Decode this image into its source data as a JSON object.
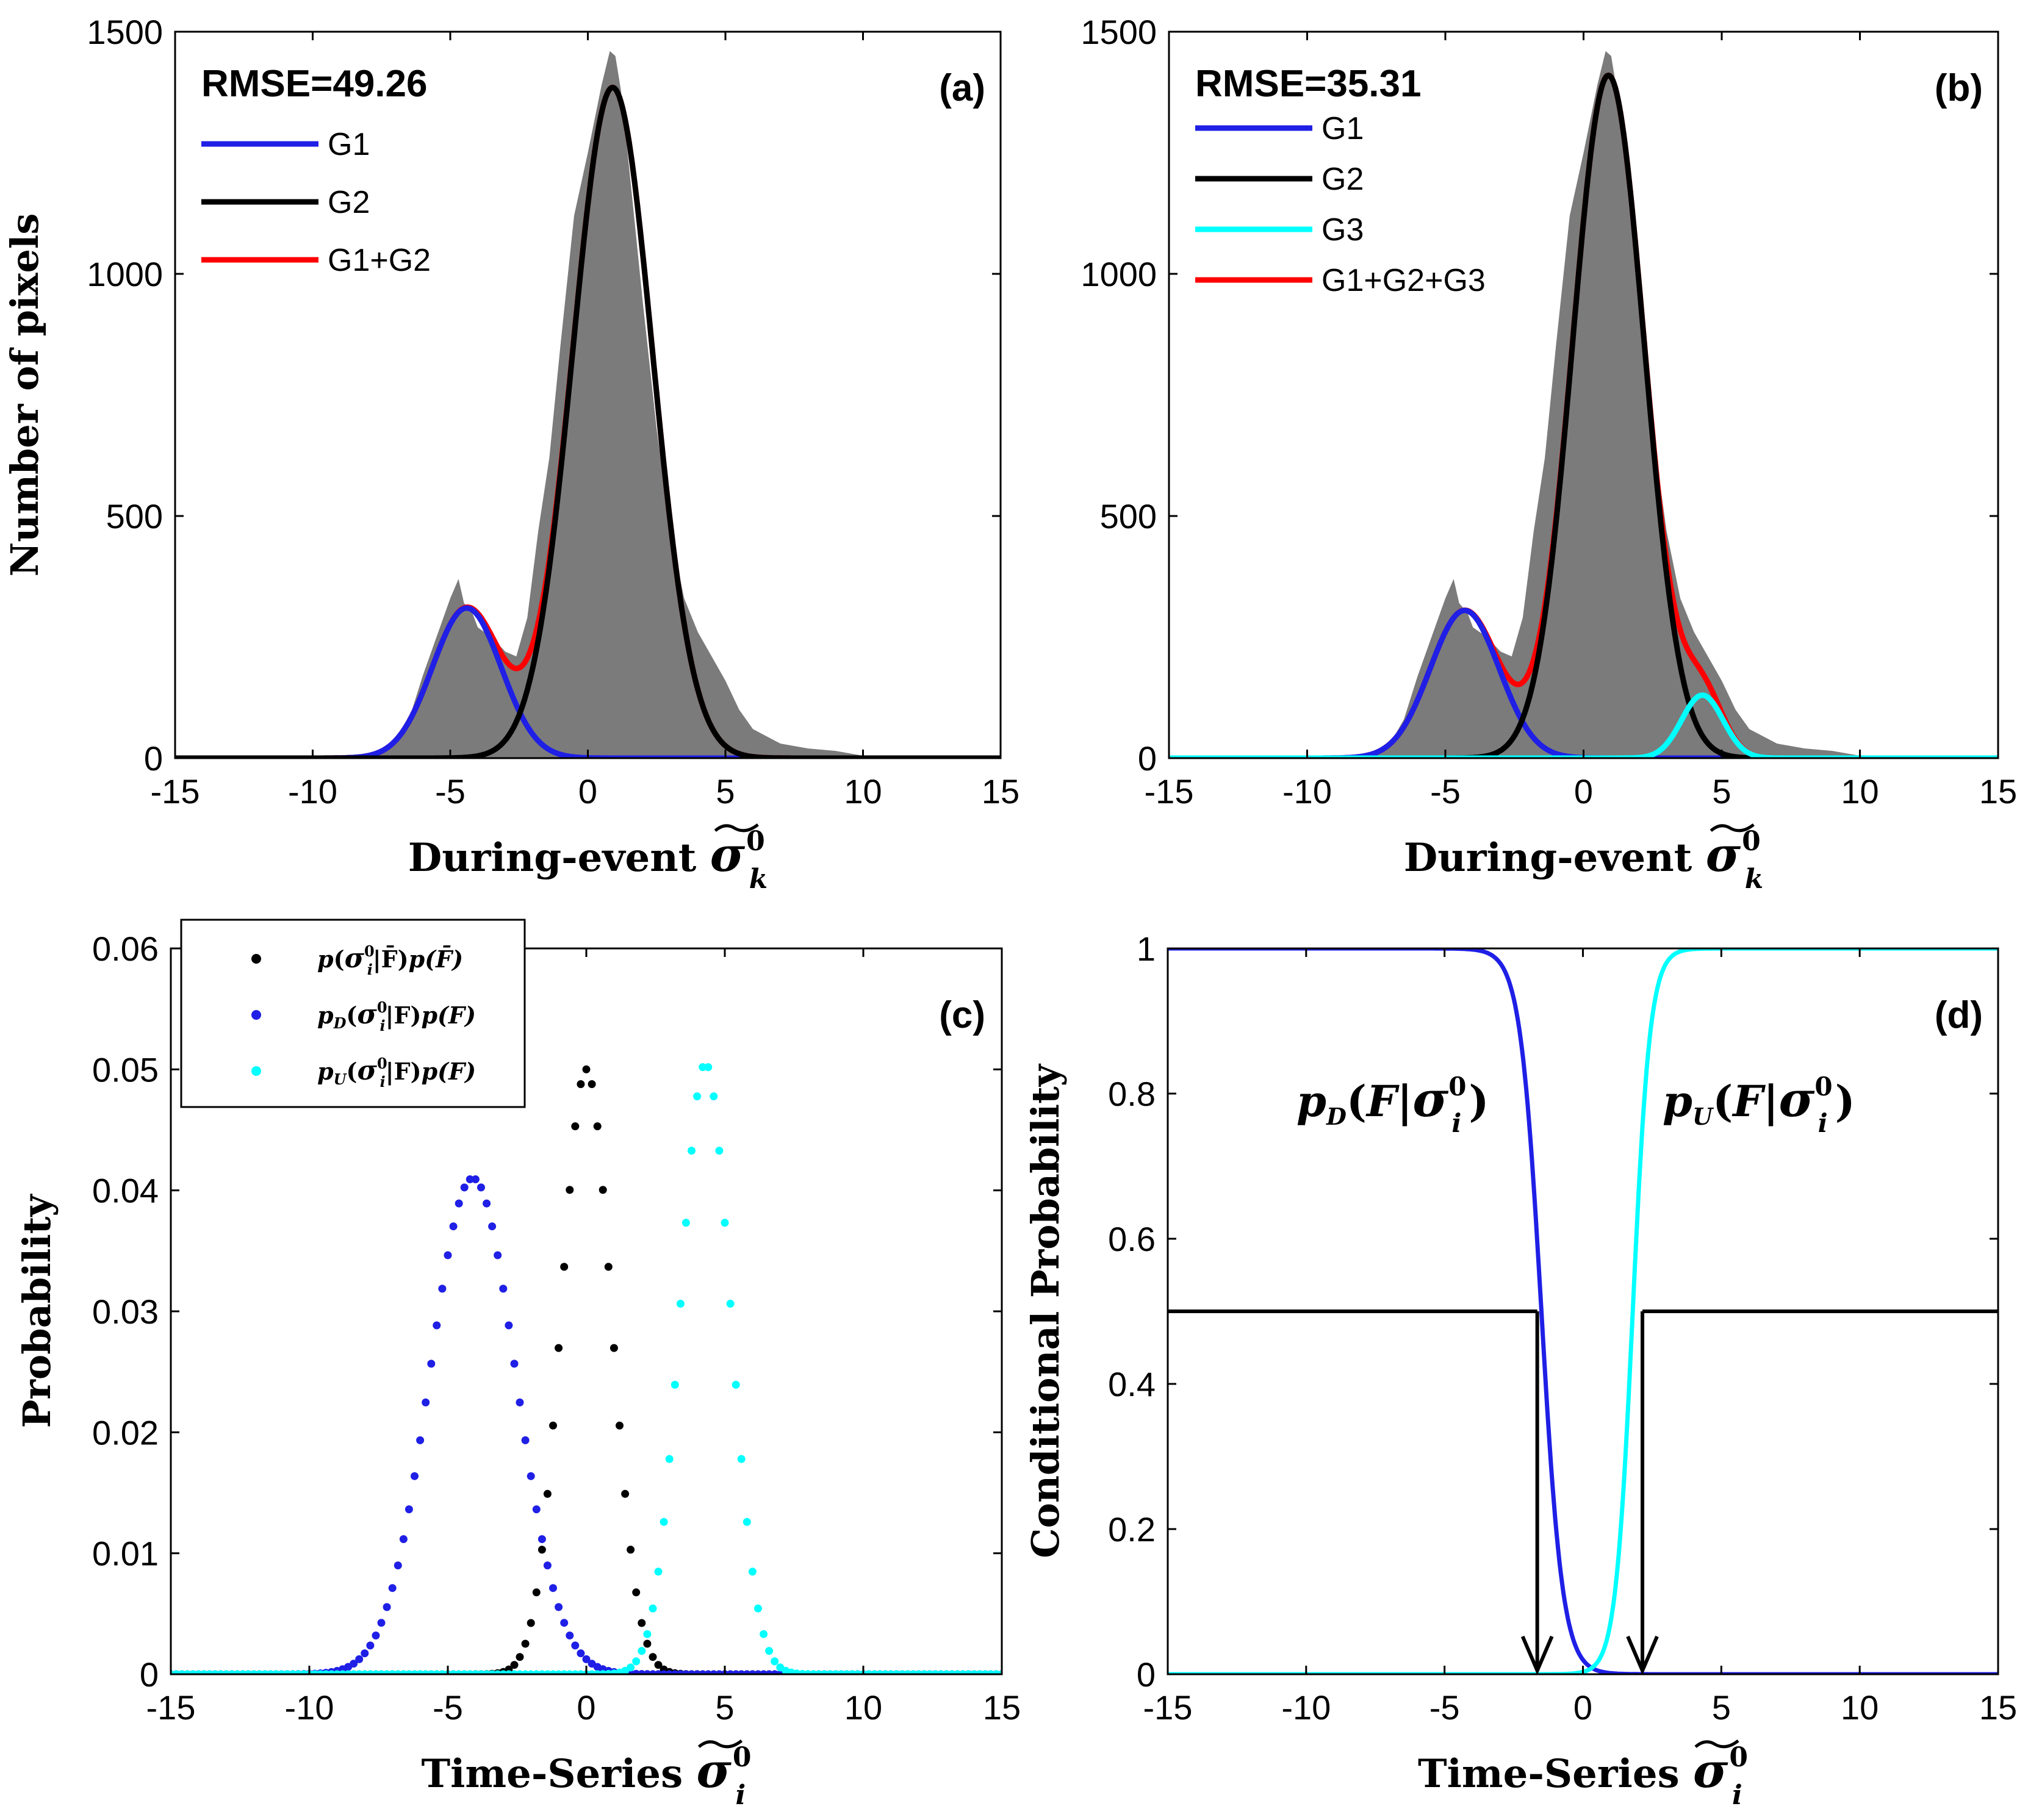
{
  "chart_data": [
    {
      "panel": "(a)",
      "type": "area+line",
      "xlabel": "During-event σ̃⁰k",
      "xlabel_parts": {
        "prefix": "During-event",
        "symbol": "σ",
        "sup": "0",
        "sub": "k"
      },
      "ylabel": "Number of pixels",
      "xlim": [
        -15,
        15
      ],
      "ylim": [
        0,
        1500
      ],
      "xticks": [
        "-15",
        "-10",
        "-5",
        "0",
        "5",
        "10",
        "15"
      ],
      "yticks": [
        "0",
        "500",
        "1000",
        "1500"
      ],
      "annotation": "RMSE=49.26",
      "histogram": {
        "x": [
          -15,
          -9,
          -8,
          -7,
          -6.5,
          -6,
          -5.5,
          -5,
          -4.7,
          -4.5,
          -4.2,
          -4,
          -3.5,
          -3,
          -2.6,
          -2.2,
          -1.8,
          -1.4,
          -1,
          -0.5,
          0,
          0.5,
          0.8,
          1,
          1.2,
          1.5,
          2,
          2.5,
          3,
          3.5,
          4,
          4.5,
          5,
          5.5,
          6,
          7,
          8,
          9,
          10,
          11,
          15
        ],
        "y": [
          0,
          0,
          5,
          30,
          80,
          170,
          250,
          330,
          370,
          320,
          300,
          270,
          250,
          220,
          210,
          290,
          470,
          620,
          850,
          1120,
          1250,
          1390,
          1460,
          1450,
          1380,
          1220,
          940,
          680,
          470,
          330,
          260,
          210,
          160,
          100,
          60,
          30,
          20,
          15,
          5,
          0,
          0
        ]
      },
      "series": [
        {
          "name": "G1",
          "color": "#1f1fe6",
          "gauss": {
            "amp": 310,
            "mu": -4.4,
            "sd": 1.25
          }
        },
        {
          "name": "G2",
          "color": "#000000",
          "gauss": {
            "amp": 1385,
            "mu": 0.9,
            "sd": 1.45
          }
        },
        {
          "name": "G1+G2",
          "color": "#ff0000",
          "sum_of": [
            "G1",
            "G2"
          ]
        }
      ]
    },
    {
      "panel": "(b)",
      "type": "area+line",
      "xlabel": "During-event σ̃⁰k",
      "xlabel_parts": {
        "prefix": "During-event",
        "symbol": "σ",
        "sup": "0",
        "sub": "k"
      },
      "ylabel": "",
      "xlim": [
        -15,
        15
      ],
      "ylim": [
        0,
        1500
      ],
      "xticks": [
        "-15",
        "-10",
        "-5",
        "0",
        "5",
        "10",
        "15"
      ],
      "yticks": [
        "0",
        "500",
        "1000",
        "1500"
      ],
      "annotation": "RMSE=35.31",
      "histogram": {
        "x": [
          -15,
          -9,
          -8,
          -7,
          -6.5,
          -6,
          -5.5,
          -5,
          -4.7,
          -4.5,
          -4.2,
          -4,
          -3.5,
          -3,
          -2.6,
          -2.2,
          -1.8,
          -1.4,
          -1,
          -0.5,
          0,
          0.5,
          0.8,
          1,
          1.2,
          1.5,
          2,
          2.5,
          3,
          3.5,
          4,
          4.5,
          5,
          5.5,
          6,
          7,
          8,
          9,
          10,
          11,
          15
        ],
        "y": [
          0,
          0,
          5,
          30,
          80,
          170,
          250,
          330,
          370,
          320,
          300,
          270,
          250,
          220,
          210,
          290,
          470,
          620,
          850,
          1120,
          1250,
          1390,
          1460,
          1450,
          1380,
          1220,
          940,
          680,
          470,
          330,
          260,
          210,
          160,
          100,
          60,
          30,
          20,
          15,
          5,
          0,
          0
        ]
      },
      "series": [
        {
          "name": "G1",
          "color": "#1f1fe6",
          "gauss": {
            "amp": 305,
            "mu": -4.3,
            "sd": 1.25
          }
        },
        {
          "name": "G2",
          "color": "#000000",
          "gauss": {
            "amp": 1410,
            "mu": 0.9,
            "sd": 1.3
          }
        },
        {
          "name": "G3",
          "color": "#00ffff",
          "gauss": {
            "amp": 130,
            "mu": 4.3,
            "sd": 0.75
          }
        },
        {
          "name": "G1+G2+G3",
          "color": "#ff0000",
          "sum_of": [
            "G1",
            "G2",
            "G3"
          ]
        }
      ]
    },
    {
      "panel": "(c)",
      "type": "scatter",
      "xlabel": "Time-Series σ̃⁰i",
      "xlabel_parts": {
        "prefix": "Time-Series",
        "symbol": "σ",
        "sup": "0",
        "sub": "i"
      },
      "ylabel": "Probability",
      "xlim": [
        -15,
        15
      ],
      "ylim": [
        0,
        0.06
      ],
      "xticks": [
        "-15",
        "-10",
        "-5",
        "0",
        "5",
        "10",
        "15"
      ],
      "yticks": [
        "0",
        "0.01",
        "0.02",
        "0.03",
        "0.04",
        "0.05",
        "0.06"
      ],
      "x_step": 0.2,
      "series": [
        {
          "name": "p(σ̃⁰i|F̄)p(F̄)",
          "pfx": "p",
          "mid": "F̄",
          "color": "#000000",
          "gauss": {
            "amp": 0.05,
            "mu": 0,
            "sd": 0.9
          }
        },
        {
          "name": "pD(σ̃⁰i|F)p(F)",
          "pfx": "p",
          "sub": "D",
          "mid": "F",
          "color": "#1f1fe6",
          "gauss": {
            "amp": 0.041,
            "mu": -4.1,
            "sd": 1.55
          }
        },
        {
          "name": "pU(σ̃⁰i|F)p(F)",
          "pfx": "p",
          "sub": "U",
          "mid": "F",
          "color": "#00ffff",
          "gauss": {
            "amp": 0.0505,
            "mu": 4.3,
            "sd": 0.9
          }
        }
      ]
    },
    {
      "panel": "(d)",
      "type": "line",
      "xlabel": "Time-Series σ̃⁰i",
      "xlabel_parts": {
        "prefix": "Time-Series",
        "symbol": "σ",
        "sup": "0",
        "sub": "i"
      },
      "ylabel": "Conditional Probability",
      "xlim": [
        -15,
        15
      ],
      "ylim": [
        0,
        1
      ],
      "xticks": [
        "-15",
        "-10",
        "-5",
        "0",
        "5",
        "10",
        "15"
      ],
      "yticks": [
        "0",
        "0.2",
        "0.4",
        "0.6",
        "0.8",
        "1"
      ],
      "series": [
        {
          "name": "pD(F|σ̃⁰i)",
          "sub": "D",
          "color": "#1f1fe6",
          "logistic": {
            "center": -1.5,
            "k": -2.6
          }
        },
        {
          "name": "pU(F|σ̃⁰i)",
          "sub": "U",
          "color": "#00ffff",
          "logistic": {
            "center": 1.8,
            "k": 3.2
          }
        },
        {
          "name": "threshold",
          "color": "#000000",
          "level": 0.5,
          "gap": [
            -1.65,
            2.15
          ]
        }
      ],
      "arrows": [
        {
          "x": -1.65,
          "from": 0.5,
          "to": 0
        },
        {
          "x": 2.15,
          "from": 0.5,
          "to": 0
        }
      ]
    }
  ]
}
